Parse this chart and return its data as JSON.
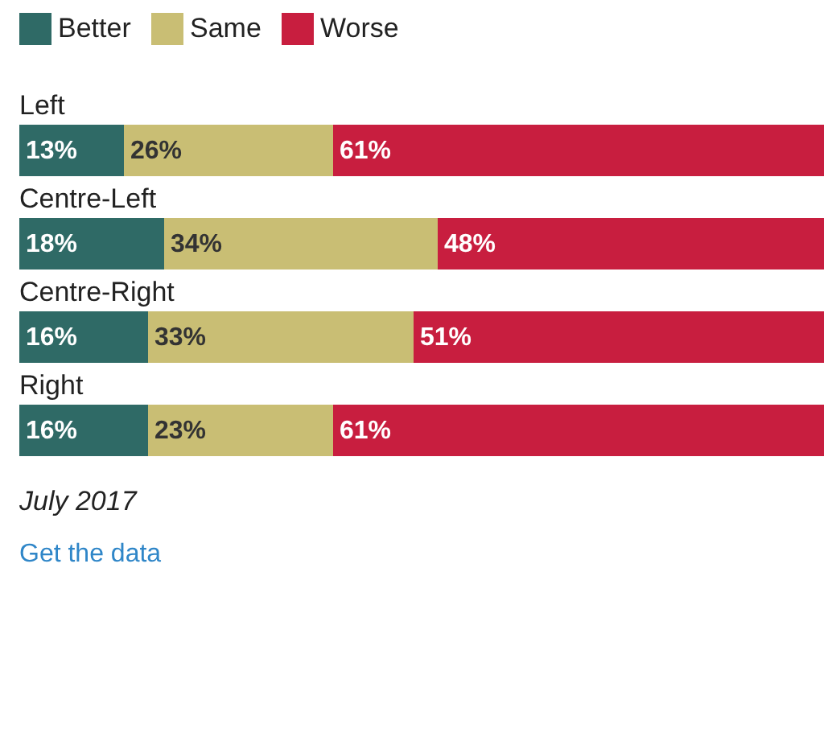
{
  "chart_data": {
    "type": "bar",
    "orientation": "horizontal",
    "stacked": true,
    "legend": "top left",
    "categories": [
      "Left",
      "Centre-Left",
      "Centre-Right",
      "Right"
    ],
    "series": [
      {
        "name": "Better",
        "color": "#2f6a66",
        "values": [
          13,
          18,
          16,
          16
        ],
        "value_labels": [
          "13%",
          "18%",
          "16%",
          "16%"
        ]
      },
      {
        "name": "Same",
        "color": "#c9be74",
        "values": [
          26,
          34,
          33,
          23
        ],
        "value_labels": [
          "26%",
          "34%",
          "33%",
          "23%"
        ]
      },
      {
        "name": "Worse",
        "color": "#c81e3f",
        "values": [
          61,
          48,
          51,
          61
        ],
        "value_labels": [
          "61%",
          "48%",
          "51%",
          "61%"
        ]
      }
    ],
    "annotations": [
      "July 2017",
      "Get the data"
    ]
  }
}
